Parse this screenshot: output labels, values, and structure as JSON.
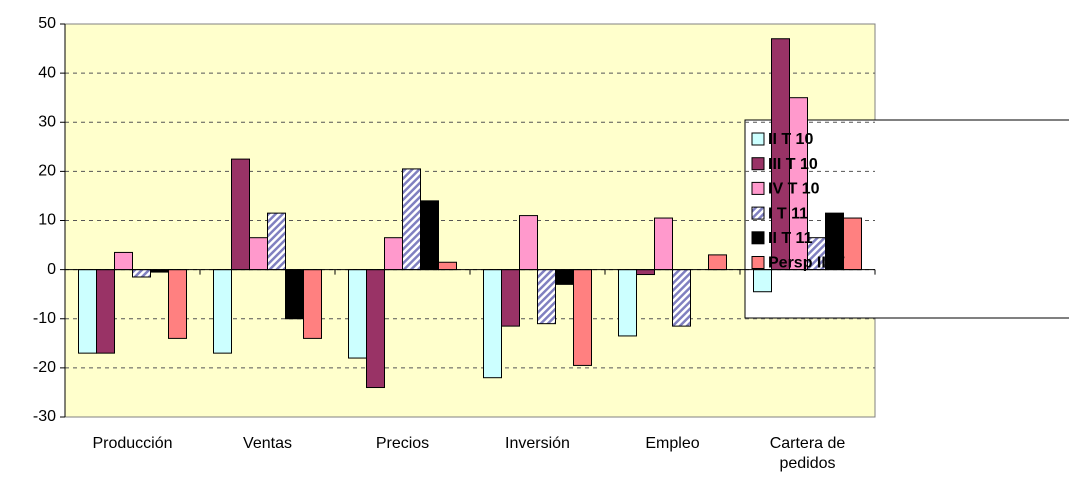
{
  "chart_data": {
    "type": "bar",
    "categories": [
      "Producción",
      "Ventas",
      "Precios",
      "Inversión",
      "Empleo",
      "Cartera de pedidos"
    ],
    "series": [
      {
        "name": "II T 10",
        "color": "#ccffff",
        "values": [
          -17,
          -17,
          -18,
          -22,
          -13.5,
          -4.5
        ]
      },
      {
        "name": "III T 10",
        "color": "#993366",
        "values": [
          -17,
          22.5,
          -24,
          -11.5,
          -1,
          47
        ]
      },
      {
        "name": "IV T 10",
        "color": "#ff99cc",
        "values": [
          3.5,
          6.5,
          6.5,
          11,
          10.5,
          35
        ]
      },
      {
        "name": "I T 11",
        "color": "#8080c0",
        "hatched": true,
        "values": [
          -1.5,
          11.5,
          20.5,
          -11,
          -11.5,
          6.5
        ]
      },
      {
        "name": "II T 11",
        "color": "#000000",
        "values": [
          -0.5,
          -10,
          14,
          -3,
          0,
          11.5
        ]
      },
      {
        "name": "Persp III T",
        "color": "#ff8080",
        "values": [
          -14,
          -14,
          1.5,
          -19.5,
          3,
          10.5
        ]
      }
    ],
    "ylim": [
      -30,
      50
    ],
    "yticks": [
      -30,
      -20,
      -10,
      0,
      10,
      20,
      30,
      40,
      50
    ],
    "grid": true,
    "legend": "right"
  }
}
